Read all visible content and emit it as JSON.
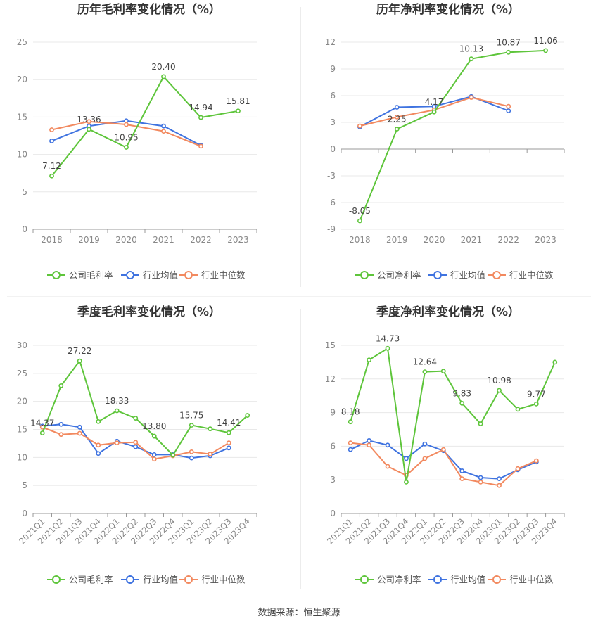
{
  "colors": {
    "company": "#5ec53b",
    "average": "#3f73e0",
    "median": "#f2895f",
    "grid": "#e8e8e8",
    "axis_text": "#888888",
    "label_text": "#444444",
    "title_text": "#333333"
  },
  "legend": {
    "average": "行业均值",
    "median": "行业中位数"
  },
  "source": "数据来源：恒生聚源",
  "chart_data": [
    {
      "type": "line",
      "title": "历年毛利率变化情况（%）",
      "categories": [
        "2018",
        "2019",
        "2020",
        "2021",
        "2022",
        "2023"
      ],
      "ylim": [
        0,
        25
      ],
      "yticks": [
        0,
        5,
        10,
        15,
        20,
        25
      ],
      "grid": true,
      "legend_position": "bottom",
      "series": [
        {
          "name": "公司毛利率",
          "role": "company",
          "values": [
            7.12,
            13.36,
            10.95,
            20.4,
            14.94,
            15.81
          ],
          "labels": [
            "7.12",
            "13.36",
            "10.95",
            "20.40",
            "14.94",
            "15.81"
          ]
        },
        {
          "name": "行业均值",
          "role": "average",
          "values": [
            11.8,
            13.8,
            14.5,
            13.8,
            11.2,
            null
          ]
        },
        {
          "name": "行业中位数",
          "role": "median",
          "values": [
            13.3,
            14.4,
            14.0,
            13.1,
            11.1,
            null
          ]
        }
      ]
    },
    {
      "type": "line",
      "title": "历年净利率变化情况（%）",
      "categories": [
        "2018",
        "2019",
        "2020",
        "2021",
        "2022",
        "2023"
      ],
      "ylim": [
        -9,
        12
      ],
      "yticks": [
        -9,
        -6,
        -3,
        0,
        3,
        6,
        9,
        12
      ],
      "grid": true,
      "legend_position": "bottom",
      "series": [
        {
          "name": "公司净利率",
          "role": "company",
          "values": [
            -8.05,
            2.25,
            4.17,
            10.13,
            10.87,
            11.06
          ],
          "labels": [
            "-8.05",
            "2.25",
            "4.17",
            "10.13",
            "10.87",
            "11.06"
          ]
        },
        {
          "name": "行业均值",
          "role": "average",
          "values": [
            2.5,
            4.7,
            4.8,
            5.9,
            4.3,
            null
          ]
        },
        {
          "name": "行业中位数",
          "role": "median",
          "values": [
            2.6,
            3.6,
            4.4,
            5.8,
            4.8,
            null
          ]
        }
      ]
    },
    {
      "type": "line",
      "title": "季度毛利率变化情况（%）",
      "categories": [
        "2021Q1",
        "2021Q2",
        "2021Q3",
        "2021Q4",
        "2022Q1",
        "2022Q2",
        "2022Q3",
        "2022Q4",
        "2023Q1",
        "2023Q2",
        "2023Q3",
        "2023Q4"
      ],
      "ylim": [
        0,
        30
      ],
      "yticks": [
        0,
        5,
        10,
        15,
        20,
        25,
        30
      ],
      "grid": true,
      "legend_position": "bottom",
      "rotate_x_labels": true,
      "series": [
        {
          "name": "公司毛利率",
          "role": "company",
          "values": [
            14.37,
            22.8,
            27.22,
            16.4,
            18.33,
            17.0,
            13.8,
            10.4,
            15.75,
            15.1,
            14.41,
            17.5
          ],
          "labels": [
            "14.37",
            "",
            "27.22",
            "",
            "18.33",
            "",
            "13.80",
            "",
            "15.75",
            "",
            "14.41",
            ""
          ]
        },
        {
          "name": "行业均值",
          "role": "average",
          "values": [
            15.6,
            15.9,
            15.4,
            10.7,
            12.9,
            11.9,
            10.5,
            10.5,
            9.9,
            10.3,
            11.7,
            null
          ]
        },
        {
          "name": "行业中位数",
          "role": "median",
          "values": [
            15.4,
            14.1,
            14.3,
            12.2,
            12.6,
            12.7,
            9.7,
            10.3,
            11.0,
            10.6,
            12.6,
            null
          ]
        }
      ]
    },
    {
      "type": "line",
      "title": "季度净利率变化情况（%）",
      "categories": [
        "2021Q1",
        "2021Q2",
        "2021Q3",
        "2021Q4",
        "2022Q1",
        "2022Q2",
        "2022Q3",
        "2022Q4",
        "2023Q1",
        "2023Q2",
        "2023Q3",
        "2023Q4"
      ],
      "ylim": [
        0,
        15
      ],
      "yticks": [
        0,
        3,
        6,
        9,
        12,
        15
      ],
      "grid": true,
      "legend_position": "bottom",
      "rotate_x_labels": true,
      "series": [
        {
          "name": "公司净利率",
          "role": "company",
          "values": [
            8.18,
            13.7,
            14.73,
            2.8,
            12.64,
            12.7,
            9.83,
            8.0,
            10.98,
            9.3,
            9.77,
            13.5
          ],
          "labels": [
            "8.18",
            "",
            "14.73",
            "",
            "12.64",
            "",
            "9.83",
            "",
            "10.98",
            "",
            "9.77",
            ""
          ]
        },
        {
          "name": "行业均值",
          "role": "average",
          "values": [
            5.7,
            6.5,
            6.1,
            4.9,
            6.2,
            5.6,
            3.8,
            3.2,
            3.1,
            3.9,
            4.6,
            null
          ]
        },
        {
          "name": "行业中位数",
          "role": "median",
          "values": [
            6.3,
            6.1,
            4.2,
            3.4,
            4.9,
            5.7,
            3.1,
            2.8,
            2.5,
            4.0,
            4.7,
            null
          ]
        }
      ]
    }
  ]
}
